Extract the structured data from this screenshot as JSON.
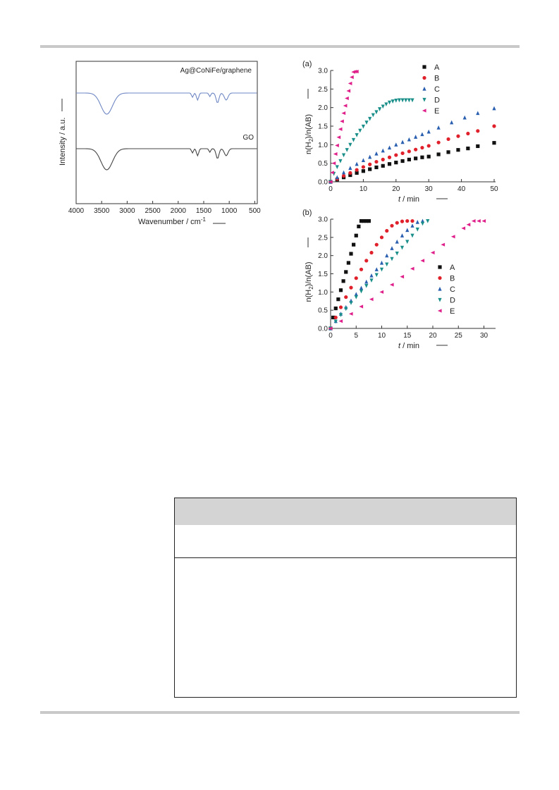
{
  "figure_left": {
    "y_axis_label": "Intensity / a.u.",
    "x_axis_label": "Wavenumber / cm",
    "x_axis_label_sup": "-1",
    "x_ticks": [
      "4000",
      "3500",
      "3000",
      "2500",
      "2000",
      "1500",
      "1000",
      "500"
    ],
    "series_labels": [
      "Ag@CoNiFe/graphene",
      "GO"
    ],
    "colors": {
      "top": "#6f87c4",
      "bottom": "#444444"
    }
  },
  "chart_data": [
    {
      "type": "scatter",
      "panel_label": "(a)",
      "xlabel": "t / min",
      "ylabel": "n(H2)/n(AB)",
      "xlim": [
        0,
        50
      ],
      "ylim": [
        0,
        3.0
      ],
      "x_ticks": [
        0,
        10,
        20,
        30,
        40,
        50
      ],
      "y_ticks": [
        "0.0",
        "0.5",
        "1.0",
        "1.5",
        "2.0",
        "2.5",
        "3.0"
      ],
      "legend_position": "top-right",
      "series": [
        {
          "name": "A",
          "color": "#111111",
          "marker": "square",
          "x": [
            0,
            2,
            4,
            6,
            8,
            10,
            12,
            14,
            16,
            18,
            20,
            22,
            24,
            26,
            28,
            30,
            33,
            36,
            39,
            42,
            45,
            50
          ],
          "y": [
            0,
            0.06,
            0.12,
            0.18,
            0.24,
            0.29,
            0.34,
            0.39,
            0.43,
            0.48,
            0.52,
            0.56,
            0.6,
            0.63,
            0.66,
            0.68,
            0.74,
            0.8,
            0.86,
            0.9,
            0.96,
            1.05
          ]
        },
        {
          "name": "B",
          "color": "#e0202a",
          "marker": "circle",
          "x": [
            0,
            2,
            4,
            6,
            8,
            10,
            12,
            14,
            16,
            18,
            20,
            22,
            24,
            26,
            28,
            30,
            33,
            36,
            39,
            42,
            45,
            50
          ],
          "y": [
            0,
            0.08,
            0.16,
            0.24,
            0.32,
            0.4,
            0.47,
            0.54,
            0.6,
            0.66,
            0.72,
            0.77,
            0.82,
            0.87,
            0.92,
            0.97,
            1.06,
            1.15,
            1.23,
            1.3,
            1.37,
            1.5
          ]
        },
        {
          "name": "C",
          "color": "#2a5fb0",
          "marker": "triangle-up",
          "x": [
            0,
            2,
            4,
            6,
            8,
            10,
            12,
            14,
            16,
            18,
            20,
            22,
            24,
            26,
            28,
            30,
            33,
            37,
            41,
            45,
            50
          ],
          "y": [
            0,
            0.12,
            0.25,
            0.37,
            0.48,
            0.58,
            0.67,
            0.76,
            0.84,
            0.92,
            1.0,
            1.07,
            1.14,
            1.21,
            1.28,
            1.35,
            1.46,
            1.6,
            1.73,
            1.85,
            1.98
          ]
        },
        {
          "name": "D",
          "color": "#1a8f8a",
          "marker": "triangle-down",
          "x": [
            0,
            1,
            2,
            3,
            4,
            5,
            6,
            7,
            8,
            9,
            10,
            11,
            12,
            13,
            14,
            15,
            16,
            17,
            18,
            19,
            20,
            21,
            22,
            23,
            24,
            25
          ],
          "y": [
            0,
            0.22,
            0.4,
            0.56,
            0.72,
            0.86,
            1.0,
            1.13,
            1.26,
            1.38,
            1.49,
            1.6,
            1.7,
            1.8,
            1.88,
            1.96,
            2.03,
            2.09,
            2.14,
            2.17,
            2.19,
            2.2,
            2.2,
            2.2,
            2.2,
            2.2
          ]
        },
        {
          "name": "E",
          "color": "#e0208a",
          "marker": "triangle-left",
          "x": [
            0,
            0.5,
            1,
            1.5,
            2,
            2.5,
            3,
            3.5,
            4,
            4.5,
            5,
            5.5,
            6,
            6.5,
            7,
            7.5,
            8
          ],
          "y": [
            0,
            0.25,
            0.5,
            0.75,
            0.98,
            1.2,
            1.42,
            1.63,
            1.85,
            2.05,
            2.25,
            2.45,
            2.65,
            2.82,
            2.96,
            2.97,
            2.97
          ]
        }
      ]
    },
    {
      "type": "scatter",
      "panel_label": "(b)",
      "xlabel": "t / min",
      "ylabel": "n(H2)/n(AB)",
      "xlim": [
        0,
        32
      ],
      "ylim": [
        0,
        3.0
      ],
      "x_ticks": [
        0,
        5,
        10,
        15,
        20,
        25,
        30
      ],
      "y_ticks": [
        "0.0",
        "0.5",
        "1.0",
        "1.5",
        "2.0",
        "2.5",
        "3.0"
      ],
      "legend_position": "right",
      "series": [
        {
          "name": "A",
          "color": "#111111",
          "marker": "square",
          "x": [
            0,
            0.5,
            1,
            1.5,
            2,
            2.5,
            3,
            3.5,
            4,
            4.5,
            5,
            5.5,
            6,
            6.5,
            7,
            7.5
          ],
          "y": [
            0,
            0.3,
            0.55,
            0.8,
            1.05,
            1.3,
            1.55,
            1.8,
            2.05,
            2.3,
            2.55,
            2.8,
            2.95,
            2.95,
            2.95,
            2.95
          ]
        },
        {
          "name": "B",
          "color": "#e0202a",
          "marker": "circle",
          "x": [
            0,
            1,
            2,
            3,
            4,
            5,
            6,
            7,
            8,
            9,
            10,
            11,
            12,
            13,
            14,
            15,
            16
          ],
          "y": [
            0,
            0.3,
            0.58,
            0.86,
            1.12,
            1.38,
            1.62,
            1.86,
            2.08,
            2.3,
            2.5,
            2.68,
            2.82,
            2.9,
            2.94,
            2.95,
            2.95
          ]
        },
        {
          "name": "C",
          "color": "#2a5fb0",
          "marker": "triangle-up",
          "x": [
            0,
            1,
            2,
            3,
            4,
            5,
            6,
            7,
            8,
            9,
            10,
            11,
            12,
            13,
            14,
            15,
            16,
            17,
            18
          ],
          "y": [
            0,
            0.2,
            0.4,
            0.58,
            0.76,
            0.94,
            1.11,
            1.28,
            1.45,
            1.62,
            1.8,
            2.0,
            2.2,
            2.38,
            2.55,
            2.7,
            2.82,
            2.92,
            2.95
          ]
        },
        {
          "name": "D",
          "color": "#1a8f8a",
          "marker": "triangle-down",
          "x": [
            0,
            1,
            2,
            3,
            4,
            5,
            6,
            7,
            8,
            9,
            10,
            11,
            12,
            13,
            14,
            15,
            16,
            17,
            18,
            19
          ],
          "y": [
            0,
            0.19,
            0.37,
            0.54,
            0.7,
            0.86,
            1.02,
            1.17,
            1.32,
            1.47,
            1.62,
            1.76,
            1.91,
            2.06,
            2.22,
            2.38,
            2.55,
            2.72,
            2.88,
            2.95
          ]
        },
        {
          "name": "E",
          "color": "#e0208a",
          "marker": "triangle-left",
          "x": [
            0,
            2,
            4,
            6,
            8,
            10,
            12,
            14,
            16,
            18,
            20,
            22,
            24,
            26,
            27,
            28,
            29,
            30
          ],
          "y": [
            0,
            0.2,
            0.4,
            0.6,
            0.8,
            1.0,
            1.2,
            1.42,
            1.64,
            1.86,
            2.08,
            2.3,
            2.52,
            2.75,
            2.85,
            2.95,
            2.95,
            2.95
          ]
        }
      ]
    }
  ]
}
